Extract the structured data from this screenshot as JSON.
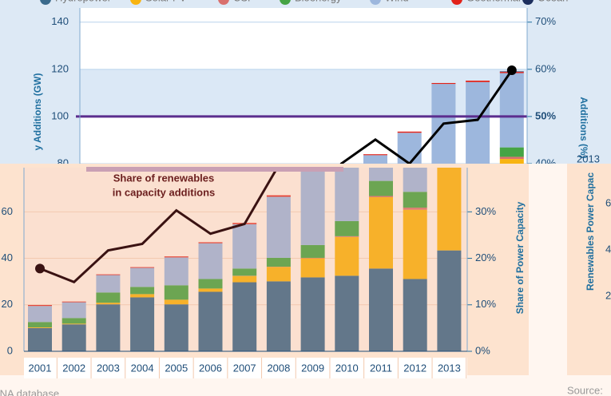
{
  "chart_data": [
    {
      "type": "bar",
      "categories": [
        "2001",
        "2002",
        "2003",
        "2004",
        "2005",
        "2006",
        "2007",
        "2008",
        "2009",
        "2010",
        "2011",
        "2012",
        "2013"
      ],
      "series": [
        {
          "name": "Hydropower",
          "color": "#3a6a8c",
          "values": [
            10,
            11.6,
            20.2,
            23.2,
            20.2,
            25.6,
            29.7,
            30.1,
            31.8,
            32.5,
            35.6,
            31.1,
            43.4
          ]
        },
        {
          "name": "Solar PV",
          "color": "#f8b411",
          "values": [
            0.3,
            0.3,
            0.7,
            1.4,
            2,
            1.4,
            2.7,
            6.2,
            8.2,
            16.7,
            30.7,
            29.8,
            38.6
          ]
        },
        {
          "name": "CSP",
          "color": "#d9706d",
          "values": [
            0,
            0,
            0,
            0,
            0,
            0,
            0.1,
            0.1,
            0.2,
            0.3,
            0.5,
            0.9,
            0.9
          ]
        },
        {
          "name": "Bioenergy",
          "color": "#46a445",
          "values": [
            2.3,
            2.4,
            4.4,
            3.1,
            6.2,
            4.1,
            3.1,
            3.8,
            5.5,
            6.5,
            6.5,
            6.8,
            4
          ]
        },
        {
          "name": "Wind",
          "color": "#9db7dd",
          "values": [
            6.9,
            6.8,
            7.5,
            8.2,
            12,
            15.4,
            19.1,
            26.3,
            37.9,
            37.1,
            40.5,
            46,
            31.5
          ]
        },
        {
          "name": "Geothermal",
          "color": "#e2231a",
          "values": [
            0.4,
            0.3,
            0.3,
            0.3,
            0.4,
            0.4,
            0.5,
            0.6,
            0.4,
            0.5,
            0.4,
            0.6,
            0.5
          ]
        },
        {
          "name": "Ocean",
          "color": "#1d2f5e",
          "values": [
            0,
            0,
            0,
            0,
            0,
            0,
            0,
            0,
            0,
            0,
            0,
            0,
            0.2
          ]
        }
      ],
      "share": {
        "color": "#3a1212",
        "axis": "y2",
        "values": [
          17.8,
          14.9,
          21.7,
          23.1,
          30.3,
          25.3,
          27.4,
          40,
          45.1,
          40,
          48.5,
          49.3,
          59.8
        ]
      },
      "annotation": [
        "Share of renewables",
        "in capacity additions"
      ],
      "ylim": [
        0,
        79
      ],
      "yticks": [
        0,
        20,
        40,
        60
      ],
      "y2lim": [
        0,
        39.5
      ],
      "y2ticks": [
        {
          "value": 0,
          "label": "0%"
        },
        {
          "value": 10,
          "label": "10%"
        },
        {
          "value": 20,
          "label": "20%"
        },
        {
          "value": 30,
          "label": "30%"
        }
      ],
      "y2label": "Share of Power Capacity",
      "side_label": "Renewables Power Capac",
      "side_ticks": [
        6,
        4,
        2
      ],
      "source": "Source:",
      "footer": "IRENA database"
    },
    {
      "type": "bar",
      "ylabel": "y Additions (GW)",
      "y2label": "Additions (%)",
      "ylim": [
        80,
        146
      ],
      "yticks": [
        80,
        100,
        120,
        140
      ],
      "y2lim": [
        40,
        73
      ],
      "y2ticks": [
        {
          "value": 40,
          "label": "40%"
        },
        {
          "value": 50,
          "label": "50%"
        },
        {
          "value": 60,
          "label": "60%"
        },
        {
          "value": 70,
          "label": "70%"
        }
      ],
      "reference_line": {
        "value": 50,
        "color": "#5b2d8e"
      },
      "corner_text": "2013"
    }
  ]
}
